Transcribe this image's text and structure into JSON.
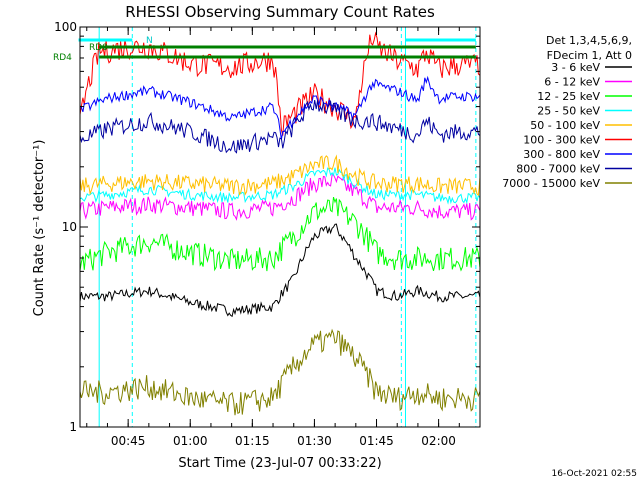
{
  "chart_data": {
    "type": "line",
    "title": "RHESSI Observing Summary Count Rates",
    "xlabel": "Start Time (23-Jul-07 00:33:22)",
    "ylabel": "Count Rate (s⁻¹ detector⁻¹)",
    "y_scale": "log",
    "ylim": [
      1,
      100
    ],
    "xlim": [
      "00:33:22",
      "02:10:00"
    ],
    "x_tick_labels": [
      "00:45",
      "01:00",
      "01:15",
      "01:30",
      "01:45",
      "02:00"
    ],
    "y_tick_labels": [
      "1",
      "10",
      "100"
    ],
    "legend_header": [
      "Det 1,3,4,5,6,9,",
      "FDecim 1, Att 0"
    ],
    "legend_position": "right",
    "timestamp": "16-Oct-2021 02:55",
    "flag_labels": [
      "N",
      "RD0",
      "RD4"
    ],
    "series": [
      {
        "name": "3 - 6 keV",
        "color": "#000000",
        "x": [
          "00:33",
          "00:40",
          "00:50",
          "01:00",
          "01:10",
          "01:20",
          "01:25",
          "01:30",
          "01:35",
          "01:40",
          "01:45",
          "01:50",
          "01:55",
          "02:00",
          "02:05",
          "02:10"
        ],
        "values": [
          4.5,
          4.5,
          4.8,
          4.2,
          3.8,
          4.0,
          5.5,
          9.0,
          10.0,
          7.0,
          4.8,
          4.5,
          4.8,
          4.5,
          4.5,
          4.5
        ]
      },
      {
        "name": "6 - 12 keV",
        "color": "#ff00ff",
        "x": [
          "00:33",
          "00:40",
          "00:50",
          "01:00",
          "01:10",
          "01:20",
          "01:25",
          "01:30",
          "01:35",
          "01:40",
          "01:45",
          "01:50",
          "01:55",
          "02:00",
          "02:05",
          "02:10"
        ],
        "values": [
          12.0,
          12.5,
          13.0,
          12.5,
          12.0,
          12.5,
          14.0,
          16.5,
          17.0,
          15.0,
          12.5,
          12.5,
          12.5,
          12.0,
          12.0,
          12.0
        ]
      },
      {
        "name": "12 - 25 keV",
        "color": "#00ff00",
        "x": [
          "00:33",
          "00:40",
          "00:50",
          "01:00",
          "01:10",
          "01:20",
          "01:25",
          "01:30",
          "01:35",
          "01:40",
          "01:45",
          "01:50",
          "01:55",
          "02:00",
          "02:05",
          "02:10"
        ],
        "values": [
          6.5,
          7.5,
          8.5,
          7.5,
          6.8,
          7.0,
          9.0,
          12.0,
          12.5,
          10.5,
          7.5,
          7.0,
          7.0,
          7.0,
          7.0,
          7.0
        ]
      },
      {
        "name": "25 - 50 keV",
        "color": "#00ffff",
        "x": [
          "00:33",
          "00:40",
          "00:50",
          "01:00",
          "01:10",
          "01:20",
          "01:25",
          "01:30",
          "01:35",
          "01:40",
          "01:45",
          "01:50",
          "01:55",
          "02:00",
          "02:05",
          "02:10"
        ],
        "values": [
          14.0,
          14.5,
          15.5,
          14.5,
          14.0,
          14.5,
          16.0,
          18.5,
          19.0,
          16.5,
          14.5,
          14.5,
          14.5,
          14.0,
          14.0,
          14.0
        ]
      },
      {
        "name": "50 - 100 keV",
        "color": "#ffbf00",
        "x": [
          "00:33",
          "00:40",
          "00:50",
          "01:00",
          "01:10",
          "01:20",
          "01:25",
          "01:30",
          "01:35",
          "01:40",
          "01:45",
          "01:50",
          "01:55",
          "02:00",
          "02:05",
          "02:10"
        ],
        "values": [
          16.0,
          16.5,
          17.0,
          16.5,
          16.0,
          16.5,
          18.0,
          20.5,
          21.0,
          18.0,
          16.5,
          16.5,
          16.5,
          16.0,
          16.0,
          16.0
        ]
      },
      {
        "name": "100 - 300 keV",
        "color": "#ff0000",
        "x": [
          "00:33",
          "00:38",
          "00:45",
          "00:50",
          "01:00",
          "01:10",
          "01:20",
          "01:22",
          "01:30",
          "01:40",
          "01:44",
          "01:45",
          "01:50",
          "01:55",
          "01:57",
          "02:00",
          "02:05",
          "02:10"
        ],
        "values": [
          30.0,
          75.0,
          80.0,
          80.0,
          66.0,
          63.0,
          70.0,
          31.0,
          46.0,
          34.0,
          90.0,
          80.0,
          68.0,
          62.0,
          75.0,
          62.0,
          65.0,
          65.0
        ]
      },
      {
        "name": "300 - 800 keV",
        "color": "#0000ff",
        "x": [
          "00:33",
          "00:40",
          "00:50",
          "01:00",
          "01:10",
          "01:20",
          "01:22",
          "01:30",
          "01:40",
          "01:44",
          "01:50",
          "01:55",
          "01:57",
          "02:00",
          "02:05",
          "02:10"
        ],
        "values": [
          38.0,
          44.0,
          48.0,
          42.0,
          35.0,
          40.0,
          29.0,
          44.0,
          36.0,
          52.0,
          48.0,
          43.0,
          55.0,
          44.0,
          45.0,
          45.0
        ]
      },
      {
        "name": "800 - 7000 keV",
        "color": "#0000a0",
        "x": [
          "00:33",
          "00:40",
          "00:50",
          "01:00",
          "01:10",
          "01:20",
          "01:22",
          "01:30",
          "01:40",
          "01:44",
          "01:50",
          "01:55",
          "01:57",
          "02:00",
          "02:05",
          "02:10"
        ],
        "values": [
          27.0,
          31.0,
          34.0,
          30.0,
          25.0,
          28.0,
          26.0,
          42.0,
          34.0,
          34.0,
          31.0,
          29.0,
          34.0,
          29.0,
          30.0,
          30.0
        ]
      },
      {
        "name": "7000 - 15000 keV",
        "color": "#808000",
        "x": [
          "00:33",
          "00:40",
          "00:50",
          "01:00",
          "01:10",
          "01:20",
          "01:25",
          "01:30",
          "01:35",
          "01:40",
          "01:45",
          "01:50",
          "01:55",
          "02:00",
          "02:05",
          "02:10"
        ],
        "values": [
          1.5,
          1.5,
          1.6,
          1.4,
          1.3,
          1.4,
          2.0,
          2.6,
          2.8,
          2.2,
          1.5,
          1.4,
          1.5,
          1.4,
          1.4,
          1.4
        ]
      }
    ]
  }
}
